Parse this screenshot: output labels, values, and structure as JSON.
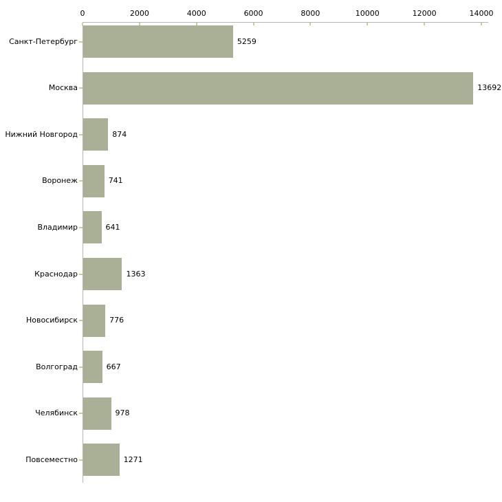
{
  "chart_data": {
    "type": "bar",
    "orientation": "horizontal",
    "title": "",
    "xlabel": "",
    "ylabel": "",
    "categories": [
      "Санкт-Петербург",
      "Москва",
      "Нижний Новгород",
      "Воронеж",
      "Владимир",
      "Краснодар",
      "Новосибирск",
      "Волгоград",
      "Челябинск",
      "Повсеместно"
    ],
    "values": [
      5259,
      13692,
      874,
      741,
      641,
      1363,
      776,
      667,
      978,
      1271
    ],
    "x_ticks": [
      0,
      2000,
      4000,
      6000,
      8000,
      10000,
      12000,
      14000
    ],
    "xlim": [
      0,
      14000
    ],
    "grid": false,
    "legend_position": "none",
    "value_labels_shown": true,
    "axis_position": "top",
    "colors": {
      "bar": "#a9b096",
      "axis_line": "#b5b5b5",
      "tick_mark": "#cccc99",
      "text": "#000000",
      "background": "#ffffff"
    }
  }
}
